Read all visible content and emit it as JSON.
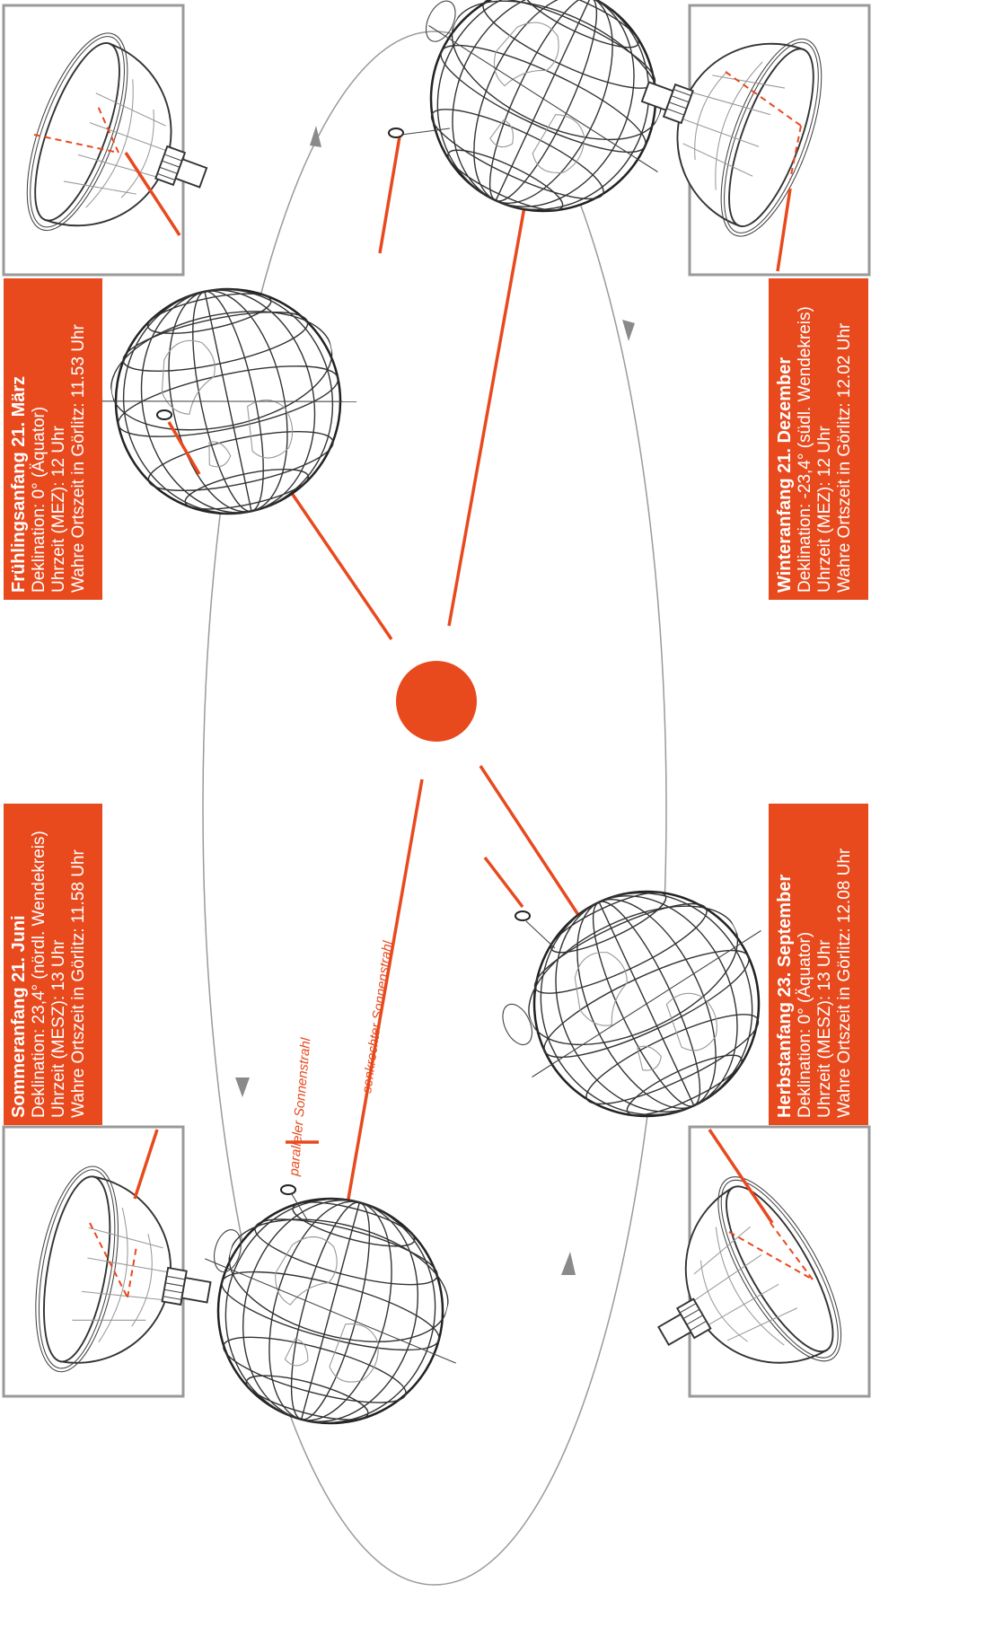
{
  "colors": {
    "accent": "#e8491d",
    "line": "#333333",
    "frame": "#9a9a9a",
    "background": "#ffffff"
  },
  "seasons": {
    "spring": {
      "title": "Frühlingsanfang 21. März",
      "declination": "Deklination: 0° (Äquator)",
      "clock": "Uhrzeit (MEZ): 12 Uhr",
      "local_time": "Wahre Ortszeit in Görlitz: 11.53 Uhr"
    },
    "summer": {
      "title": "Sommeranfang 21. Juni",
      "declination": "Deklination: 23,4° (nördl. Wendekreis)",
      "clock": "Uhrzeit (MESZ): 13 Uhr",
      "local_time": "Wahre Ortszeit in Görlitz: 11.58 Uhr"
    },
    "winter": {
      "title": "Winteranfang 21. Dezember",
      "declination": "Deklination: -23,4° (südl. Wendekreis)",
      "clock": "Uhrzeit (MEZ): 12 Uhr",
      "local_time": "Wahre Ortszeit in Görlitz: 12.02 Uhr"
    },
    "autumn": {
      "title": "Herbstanfang 23. September",
      "declination": "Deklination: 0° (Äquator)",
      "clock": "Uhrzeit (MESZ): 13 Uhr",
      "local_time": "Wahre Ortszeit in Görlitz: 12.08 Uhr"
    }
  },
  "ray_labels": {
    "parallel": "paralleler Sonnenstrahl",
    "perpendicular": "senkrechter Sonnenstrahl"
  },
  "icons": [
    "sun-icon",
    "globe-icon",
    "sundial-icon",
    "orbit-arrow-icon"
  ]
}
